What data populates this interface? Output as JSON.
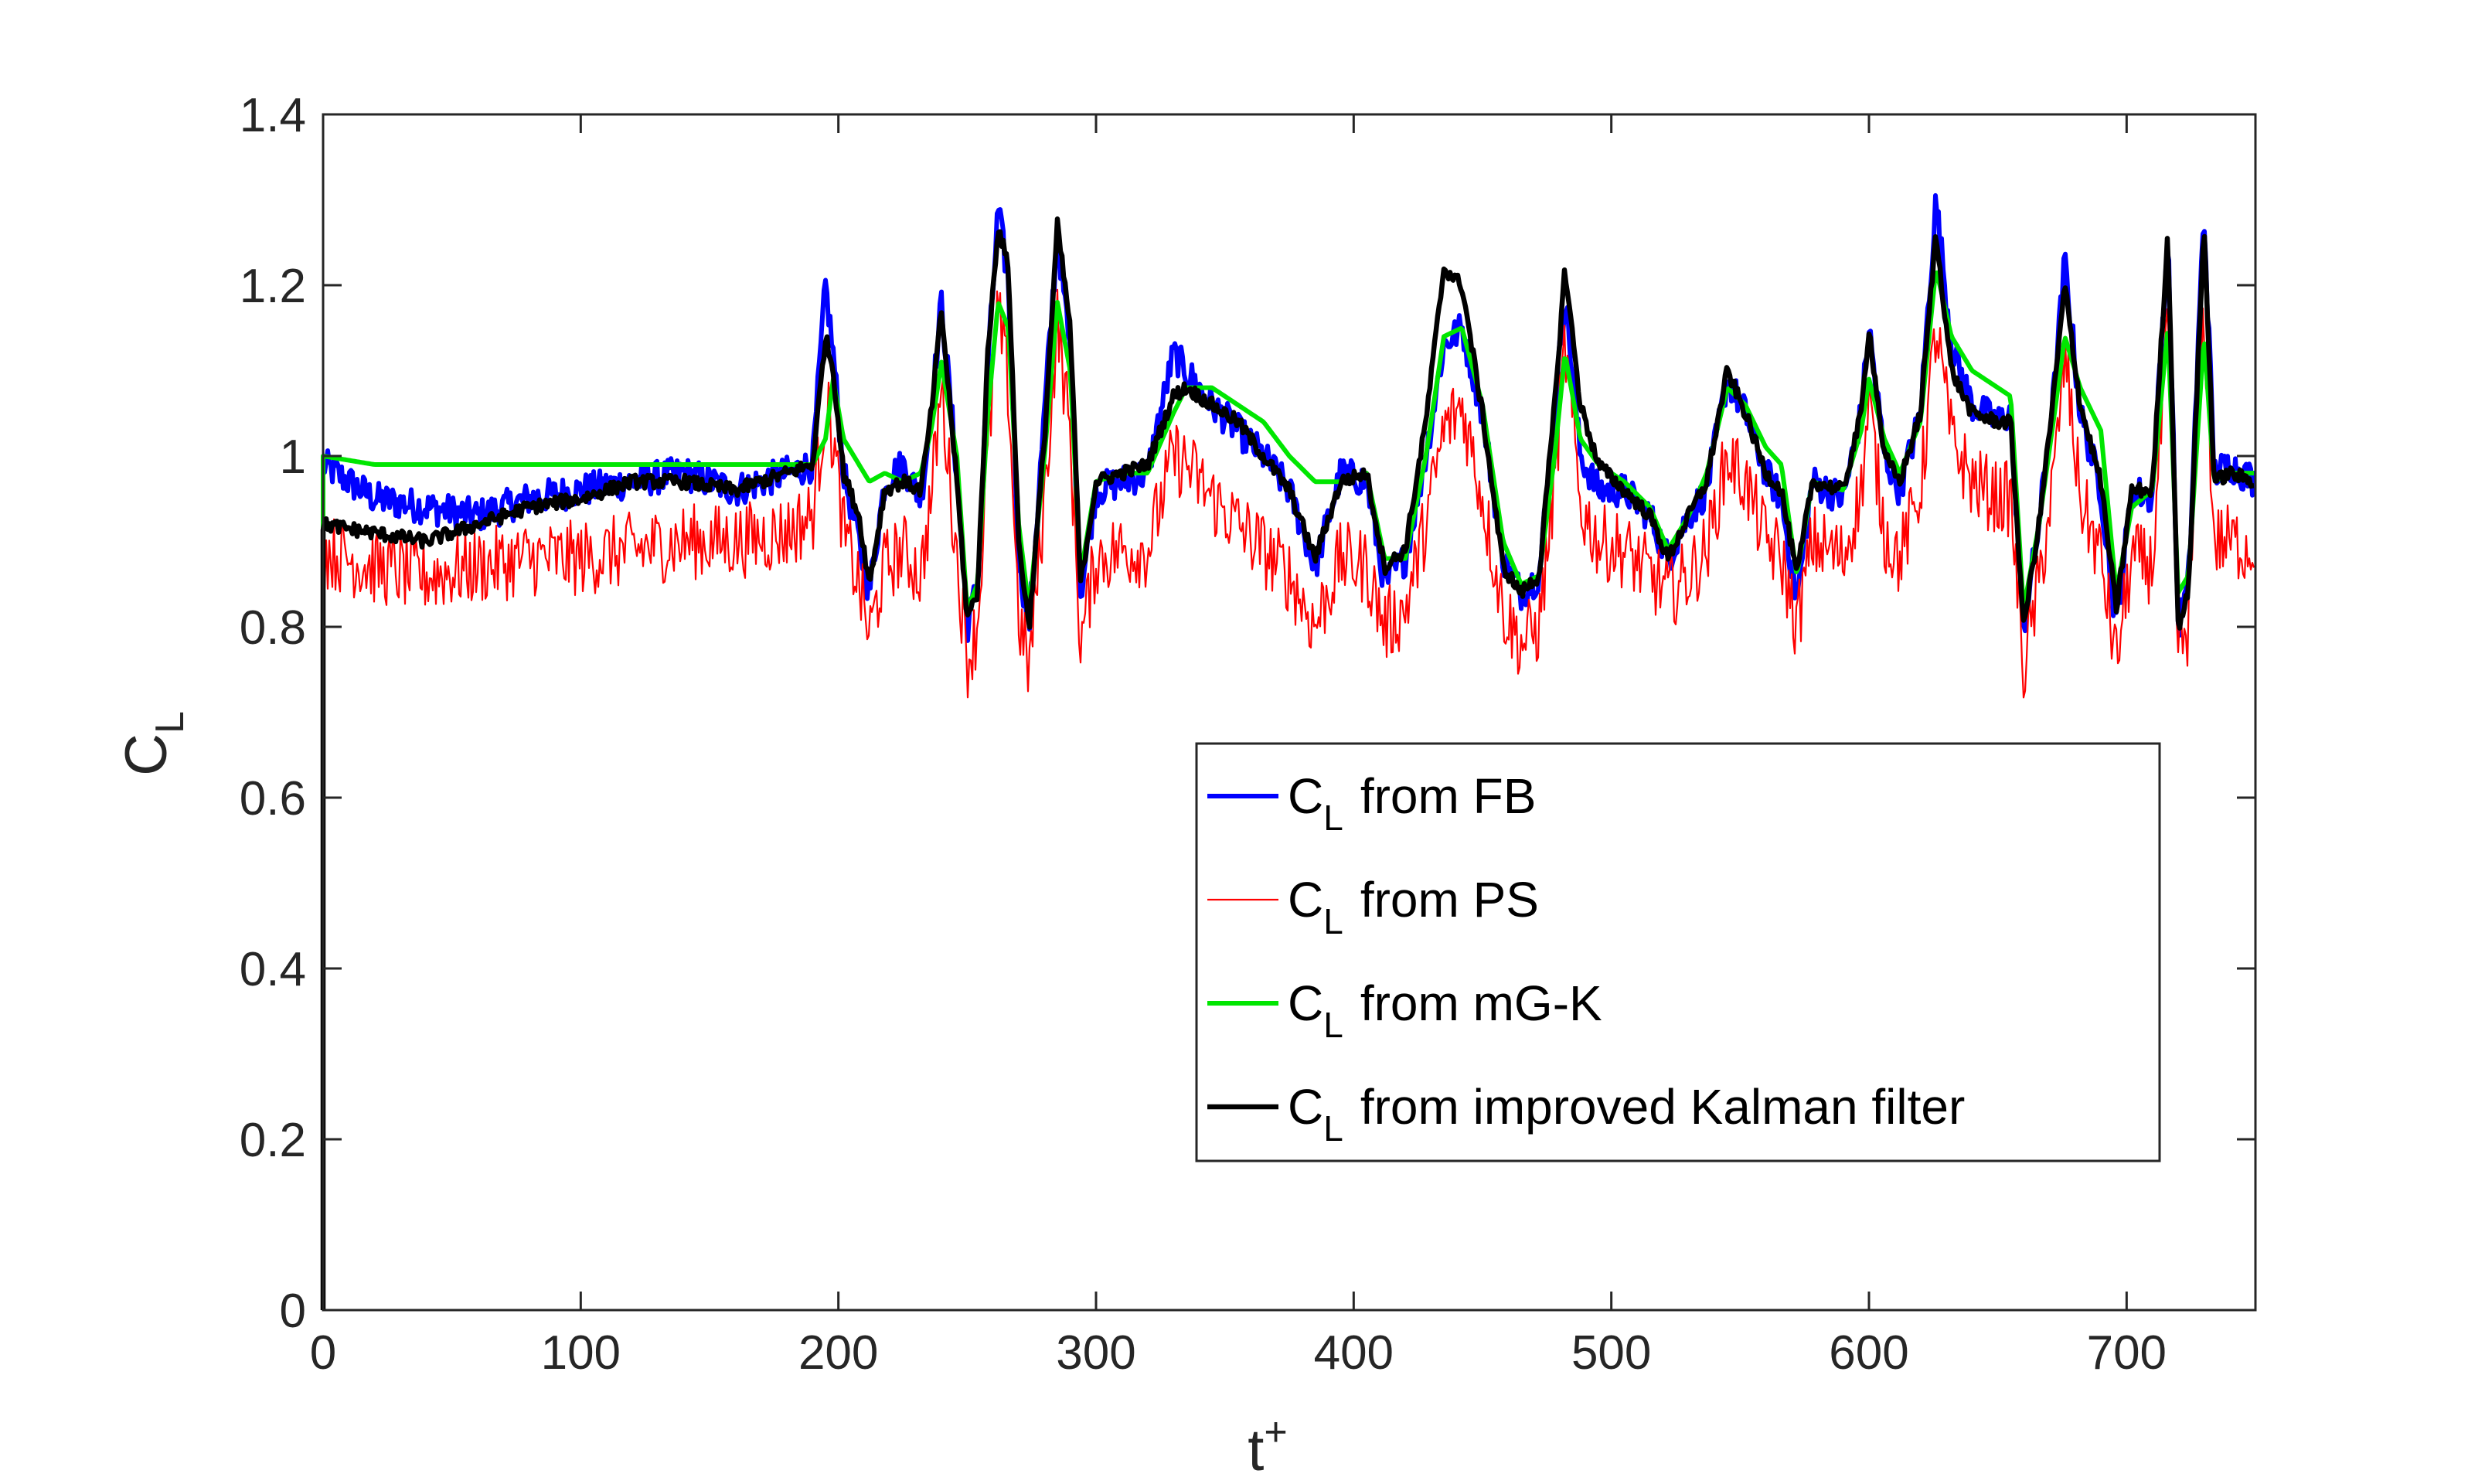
{
  "chart_data": {
    "type": "line",
    "title": "",
    "xlabel": "t",
    "xlabel_superscript": "+",
    "ylabel": "C",
    "ylabel_subscript": "L",
    "xlim": [
      0,
      750
    ],
    "ylim": [
      0,
      1.4
    ],
    "xticks": [
      0,
      100,
      200,
      300,
      400,
      500,
      600,
      700
    ],
    "yticks": [
      0,
      0.2,
      0.4,
      0.6,
      0.8,
      1,
      1.2,
      1.4
    ],
    "xtick_labels": [
      "0",
      "100",
      "200",
      "300",
      "400",
      "500",
      "600",
      "700"
    ],
    "ytick_labels": [
      "0",
      "0.2",
      "0.4",
      "0.6",
      "0.8",
      "1",
      "1.2",
      "1.4"
    ],
    "grid": false,
    "legend_position": "lower-right",
    "legend_prefix": "C",
    "legend_prefix_subscript": "L",
    "series": [
      {
        "name": "from FB",
        "color": "#0000ff",
        "noise": 0.02,
        "x": [
          0,
          20,
          40,
          60,
          80,
          100,
          120,
          140,
          160,
          180,
          190,
          195,
          198,
          202,
          208,
          212,
          218,
          225,
          232,
          236,
          240,
          246,
          250,
          254,
          258,
          262,
          266,
          270,
          274,
          280,
          285,
          290,
          294,
          300,
          310,
          320,
          330,
          335,
          345,
          355,
          365,
          375,
          385,
          395,
          405,
          412,
          420,
          428,
          435,
          442,
          450,
          458,
          465,
          472,
          478,
          482,
          488,
          495,
          505,
          515,
          522,
          530,
          537,
          545,
          552,
          560,
          566,
          572,
          578,
          590,
          597,
          600,
          606,
          612,
          620,
          626,
          632,
          640,
          650,
          655,
          660,
          666,
          672,
          676,
          682,
          690,
          696,
          702,
          710,
          716,
          720,
          724,
          730,
          734,
          740,
          750
        ],
        "y": [
          0.99,
          0.95,
          0.94,
          0.93,
          0.95,
          0.96,
          0.97,
          0.98,
          0.96,
          0.98,
          0.99,
          1.2,
          1.12,
          0.98,
          0.9,
          0.84,
          0.97,
          0.99,
          0.95,
          1.05,
          1.18,
          0.98,
          0.8,
          0.85,
          1.1,
          1.29,
          1.2,
          0.88,
          0.8,
          1.05,
          1.26,
          1.12,
          0.84,
          0.96,
          0.97,
          0.98,
          1.12,
          1.1,
          1.06,
          1.03,
          1.0,
          0.96,
          0.87,
          0.98,
          0.97,
          0.85,
          0.88,
          1.0,
          1.13,
          1.15,
          1.05,
          0.88,
          0.84,
          0.86,
          1.05,
          1.19,
          1.0,
          0.96,
          0.96,
          0.93,
          0.88,
          0.93,
          0.96,
          1.09,
          1.05,
          0.98,
          0.95,
          0.83,
          0.97,
          0.95,
          1.05,
          1.15,
          1.0,
          0.96,
          1.05,
          1.3,
          1.13,
          1.06,
          1.04,
          1.05,
          0.8,
          0.92,
          1.08,
          1.23,
          1.05,
          0.96,
          0.8,
          0.96,
          0.95,
          1.26,
          0.8,
          0.85,
          1.29,
          0.98,
          0.99,
          0.97
        ]
      },
      {
        "name": "from PS",
        "color": "#ff0000",
        "noise": 0.045,
        "x": [
          0,
          20,
          40,
          60,
          80,
          100,
          120,
          140,
          160,
          180,
          190,
          195,
          198,
          202,
          208,
          212,
          218,
          225,
          232,
          236,
          240,
          246,
          250,
          254,
          258,
          262,
          266,
          270,
          274,
          280,
          285,
          290,
          294,
          300,
          310,
          320,
          330,
          335,
          345,
          355,
          365,
          375,
          385,
          395,
          405,
          412,
          420,
          428,
          435,
          442,
          450,
          458,
          465,
          472,
          478,
          482,
          488,
          495,
          505,
          515,
          522,
          530,
          537,
          545,
          552,
          560,
          566,
          572,
          578,
          590,
          597,
          600,
          606,
          612,
          620,
          626,
          632,
          640,
          650,
          655,
          660,
          666,
          672,
          676,
          682,
          690,
          696,
          702,
          710,
          716,
          720,
          724,
          730,
          734,
          740,
          750
        ],
        "y": [
          0.89,
          0.87,
          0.86,
          0.87,
          0.88,
          0.88,
          0.89,
          0.9,
          0.9,
          0.91,
          0.93,
          1.06,
          1.02,
          0.91,
          0.85,
          0.79,
          0.87,
          0.89,
          0.86,
          0.95,
          1.08,
          0.88,
          0.76,
          0.8,
          1.0,
          1.17,
          1.08,
          0.81,
          0.75,
          0.95,
          1.16,
          1.02,
          0.78,
          0.88,
          0.89,
          0.89,
          1.0,
          0.99,
          0.95,
          0.92,
          0.89,
          0.86,
          0.8,
          0.88,
          0.87,
          0.8,
          0.82,
          0.92,
          1.03,
          1.06,
          0.95,
          0.82,
          0.78,
          0.8,
          0.97,
          1.13,
          0.94,
          0.9,
          0.89,
          0.86,
          0.84,
          0.86,
          0.89,
          1.0,
          0.97,
          0.9,
          0.88,
          0.8,
          0.9,
          0.88,
          0.96,
          1.06,
          0.91,
          0.88,
          0.96,
          1.15,
          1.02,
          0.97,
          0.95,
          0.95,
          0.75,
          0.85,
          0.98,
          1.12,
          0.95,
          0.88,
          0.76,
          0.88,
          0.87,
          1.15,
          0.77,
          0.8,
          1.17,
          0.9,
          0.9,
          0.89
        ]
      },
      {
        "name": "from mG-K",
        "color": "#00e600",
        "noise": 0,
        "x": [
          0,
          20,
          40,
          60,
          80,
          100,
          120,
          140,
          160,
          180,
          190,
          195,
          198,
          202,
          208,
          212,
          218,
          225,
          232,
          236,
          240,
          246,
          250,
          254,
          258,
          262,
          266,
          270,
          274,
          280,
          285,
          290,
          294,
          300,
          310,
          320,
          330,
          335,
          345,
          355,
          365,
          375,
          385,
          395,
          405,
          412,
          420,
          428,
          435,
          442,
          450,
          458,
          465,
          472,
          478,
          482,
          488,
          495,
          505,
          515,
          522,
          530,
          537,
          545,
          552,
          560,
          566,
          572,
          578,
          590,
          597,
          600,
          606,
          612,
          620,
          626,
          632,
          640,
          650,
          655,
          660,
          666,
          672,
          676,
          682,
          690,
          696,
          702,
          710,
          716,
          720,
          724,
          730,
          734,
          740,
          750
        ],
        "y": [
          1.0,
          0.99,
          0.99,
          0.99,
          0.99,
          0.99,
          0.99,
          0.99,
          0.99,
          0.99,
          0.99,
          1.02,
          1.09,
          1.02,
          0.99,
          0.97,
          0.98,
          0.97,
          0.98,
          1.03,
          1.11,
          1.0,
          0.82,
          0.85,
          1.05,
          1.18,
          1.15,
          0.92,
          0.82,
          1.0,
          1.18,
          1.1,
          0.86,
          0.97,
          0.98,
          0.98,
          1.05,
          1.08,
          1.08,
          1.06,
          1.04,
          1.0,
          0.97,
          0.97,
          0.98,
          0.88,
          0.88,
          1.0,
          1.14,
          1.15,
          1.06,
          0.9,
          0.85,
          0.86,
          1.0,
          1.12,
          1.02,
          0.99,
          0.97,
          0.94,
          0.89,
          0.93,
          0.98,
          1.08,
          1.06,
          1.01,
          0.99,
          0.86,
          0.97,
          0.96,
          1.03,
          1.09,
          1.02,
          0.98,
          1.04,
          1.22,
          1.14,
          1.1,
          1.08,
          1.07,
          0.82,
          0.92,
          1.05,
          1.14,
          1.08,
          1.03,
          0.84,
          0.94,
          0.96,
          1.15,
          0.84,
          0.86,
          1.14,
          0.97,
          0.98,
          0.98
        ]
      },
      {
        "name": "from improved Kalman filter",
        "color": "#000000",
        "noise": 0.008,
        "x": [
          0,
          20,
          40,
          60,
          80,
          100,
          120,
          140,
          160,
          180,
          190,
          195,
          198,
          202,
          208,
          212,
          218,
          225,
          232,
          236,
          240,
          246,
          250,
          254,
          258,
          262,
          266,
          270,
          274,
          280,
          285,
          290,
          294,
          300,
          310,
          320,
          330,
          335,
          345,
          355,
          365,
          375,
          385,
          395,
          405,
          412,
          420,
          428,
          435,
          442,
          450,
          458,
          465,
          472,
          478,
          482,
          488,
          495,
          505,
          515,
          522,
          530,
          537,
          545,
          552,
          560,
          566,
          572,
          578,
          590,
          597,
          600,
          606,
          612,
          620,
          626,
          632,
          640,
          650,
          655,
          660,
          666,
          672,
          676,
          682,
          690,
          696,
          702,
          710,
          716,
          720,
          724,
          730,
          734,
          740,
          750
        ],
        "y": [
          0.92,
          0.91,
          0.9,
          0.92,
          0.94,
          0.95,
          0.97,
          0.97,
          0.96,
          0.98,
          0.99,
          1.14,
          1.1,
          0.98,
          0.93,
          0.85,
          0.96,
          0.97,
          0.96,
          1.05,
          1.17,
          0.97,
          0.81,
          0.84,
          1.12,
          1.27,
          1.22,
          0.9,
          0.8,
          1.02,
          1.27,
          1.15,
          0.85,
          0.97,
          0.98,
          0.99,
          1.07,
          1.08,
          1.06,
          1.04,
          1.0,
          0.96,
          0.88,
          0.97,
          0.98,
          0.87,
          0.89,
          1.04,
          1.22,
          1.2,
          1.05,
          0.87,
          0.84,
          0.86,
          1.06,
          1.22,
          1.06,
          0.99,
          0.96,
          0.93,
          0.88,
          0.93,
          0.97,
          1.1,
          1.05,
          0.98,
          0.96,
          0.86,
          0.97,
          0.96,
          1.05,
          1.15,
          1.0,
          0.97,
          1.05,
          1.26,
          1.1,
          1.05,
          1.04,
          1.04,
          0.8,
          0.92,
          1.08,
          1.2,
          1.06,
          0.97,
          0.82,
          0.96,
          0.96,
          1.26,
          0.8,
          0.84,
          1.27,
          0.97,
          0.98,
          0.97
        ]
      }
    ]
  }
}
